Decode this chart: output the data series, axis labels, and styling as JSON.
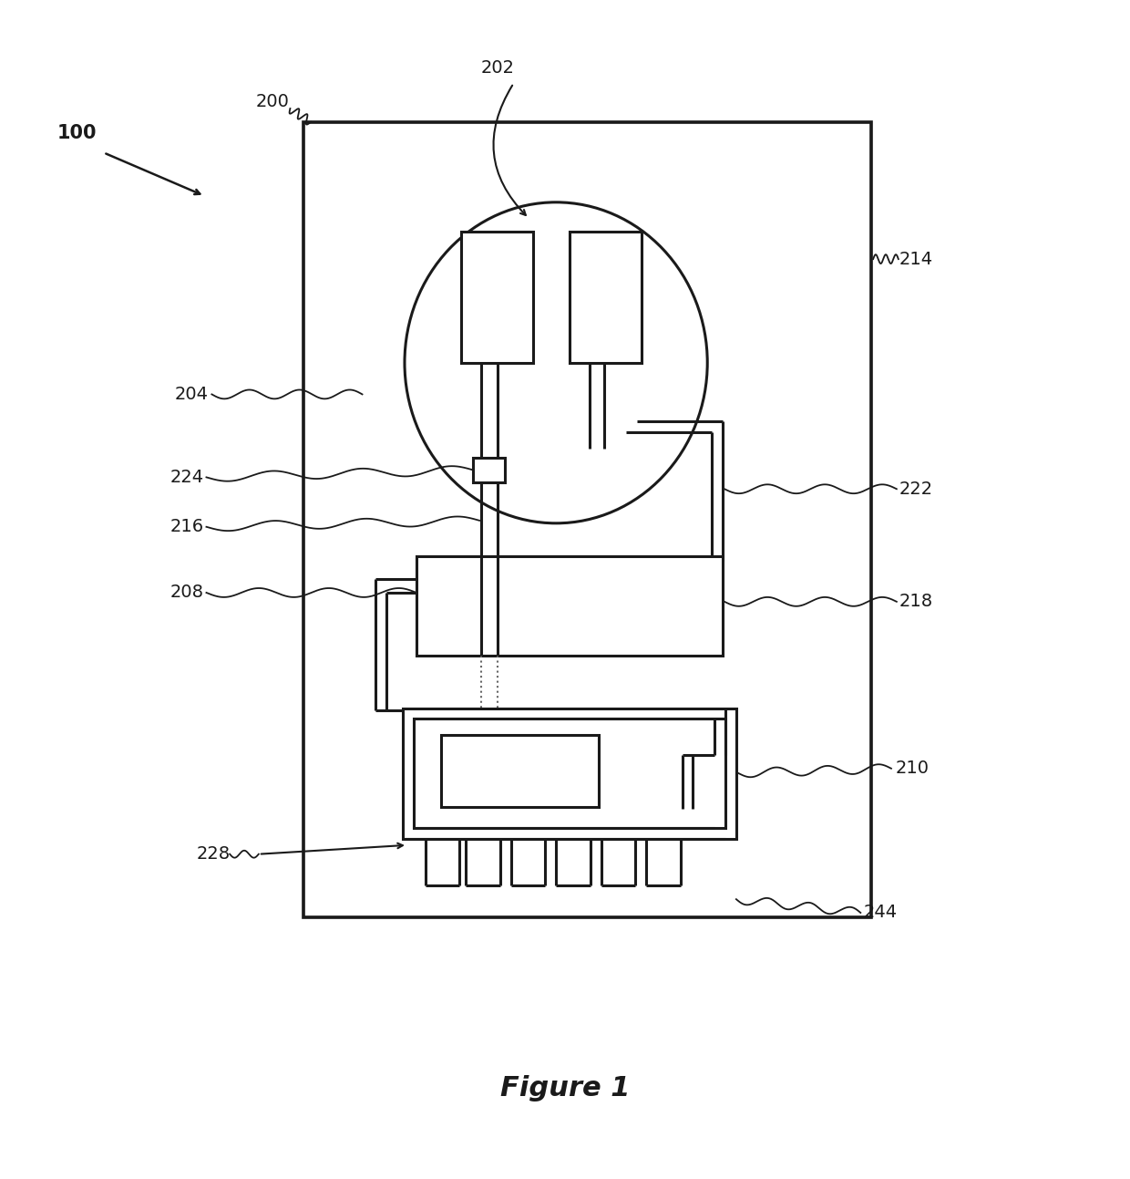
{
  "figure_label": "Figure 1",
  "bg": "#ffffff",
  "lc": "#1a1a1a",
  "lw": 2.2,
  "thin": 1.3,
  "fig_w": 12.4,
  "fig_h": 12.93
}
